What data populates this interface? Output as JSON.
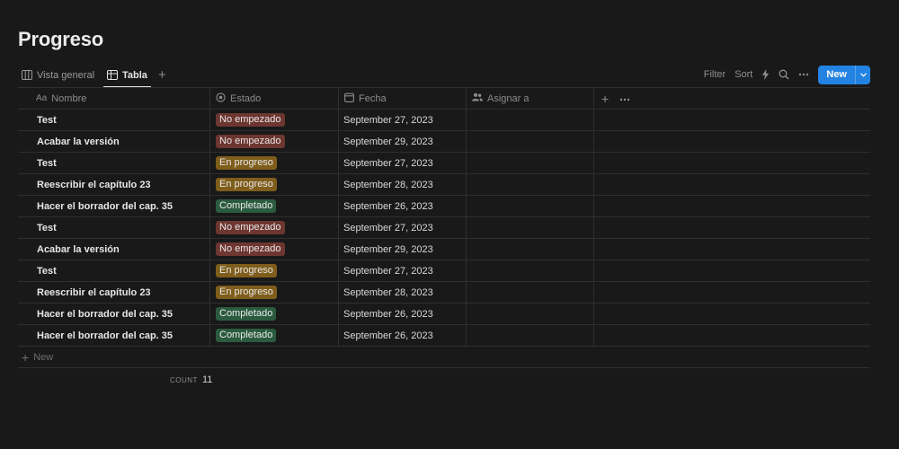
{
  "page": {
    "title": "Progreso"
  },
  "views": {
    "tabs": [
      {
        "label": "Vista general",
        "icon": "board-columns-icon",
        "active": false
      },
      {
        "label": "Tabla",
        "icon": "table-icon",
        "active": true
      }
    ],
    "add_icon": "plus-icon"
  },
  "toolbar": {
    "filter": "Filter",
    "sort": "Sort",
    "automation_icon": "lightning-icon",
    "search_icon": "search-icon",
    "more_icon": "ellipsis-icon",
    "new_label": "New",
    "accent": "#2383e2"
  },
  "table": {
    "columns": {
      "nombre": {
        "prefix": "Aa",
        "label": "Nombre"
      },
      "estado": {
        "label": "Estado",
        "icon": "status-icon"
      },
      "fecha": {
        "label": "Fecha",
        "icon": "calendar-icon"
      },
      "asignar": {
        "label": "Asignar a",
        "icon": "people-icon"
      }
    },
    "status_colors": {
      "No empezado": "#6e3630",
      "En progreso": "#7f5d1b",
      "Completado": "#2b5b3f"
    },
    "rows": [
      {
        "nombre": "Test",
        "estado": "No empezado",
        "fecha": "September 27, 2023"
      },
      {
        "nombre": "Acabar la versión",
        "estado": "No empezado",
        "fecha": "September 29, 2023"
      },
      {
        "nombre": "Test",
        "estado": "En progreso",
        "fecha": "September 27, 2023"
      },
      {
        "nombre": "Reescribir el capítulo 23",
        "estado": "En progreso",
        "fecha": "September 28, 2023"
      },
      {
        "nombre": "Hacer el borrador del cap. 35",
        "estado": "Completado",
        "fecha": "September 26, 2023"
      },
      {
        "nombre": "Test",
        "estado": "No empezado",
        "fecha": "September 27, 2023"
      },
      {
        "nombre": "Acabar la versión",
        "estado": "No empezado",
        "fecha": "September 29, 2023"
      },
      {
        "nombre": "Test",
        "estado": "En progreso",
        "fecha": "September 27, 2023"
      },
      {
        "nombre": "Reescribir el capítulo 23",
        "estado": "En progreso",
        "fecha": "September 28, 2023"
      },
      {
        "nombre": "Hacer el borrador del cap. 35",
        "estado": "Completado",
        "fecha": "September 26, 2023"
      },
      {
        "nombre": "Hacer el borrador del cap. 35",
        "estado": "Completado",
        "fecha": "September 26, 2023"
      }
    ],
    "new_row_label": "New"
  },
  "footer": {
    "count_label": "COUNT",
    "count_value": "11"
  }
}
